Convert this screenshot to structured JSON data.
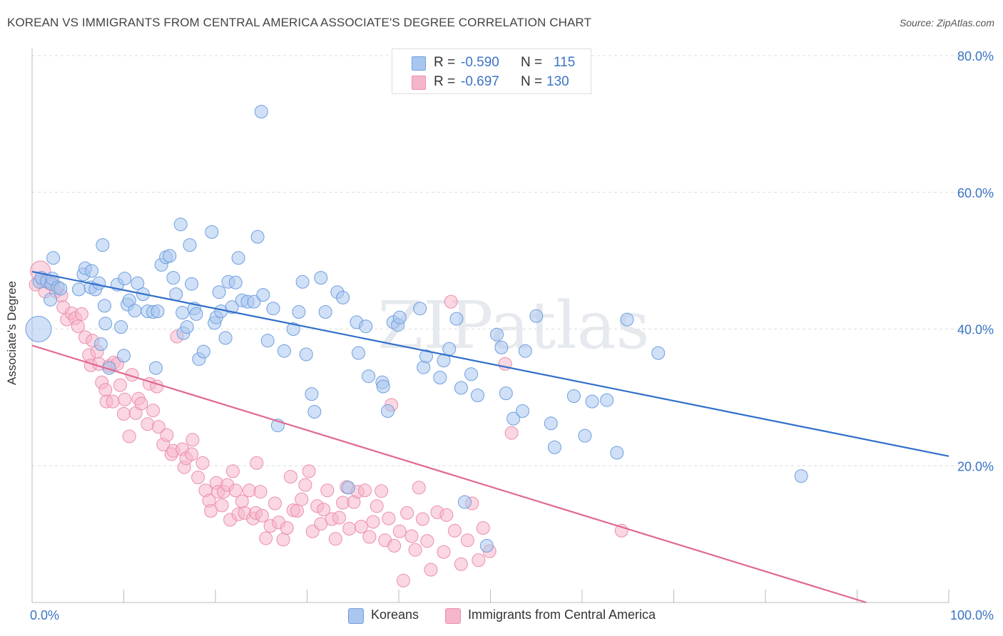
{
  "header": {
    "title": "KOREAN VS IMMIGRANTS FROM CENTRAL AMERICA ASSOCIATE'S DEGREE CORRELATION CHART",
    "source": "Source: ZipAtlas.com"
  },
  "watermark": "ZIPatlas",
  "stats": [
    {
      "r_label": "R =",
      "r_value": "-0.590",
      "n_label": "N =",
      "n_value": "115",
      "color": "#a9c6ef"
    },
    {
      "r_label": "R =",
      "r_value": "-0.697",
      "n_label": "N =",
      "n_value": "130",
      "color": "#f5b6cb"
    }
  ],
  "chart_data": {
    "type": "scatter",
    "title": "KOREAN VS IMMIGRANTS FROM CENTRAL AMERICA ASSOCIATE'S DEGREE CORRELATION CHART",
    "xlabel": "",
    "ylabel": "Associate's Degree",
    "xlim": [
      0,
      100
    ],
    "ylim": [
      0,
      80
    ],
    "x_tick_labels": [
      "0.0%",
      "100.0%"
    ],
    "y_ticks": [
      20,
      40,
      60,
      80
    ],
    "y_tick_labels": [
      "20.0%",
      "40.0%",
      "60.0%",
      "80.0%"
    ],
    "grid": true,
    "legend_position": "bottom",
    "series": [
      {
        "name": "Koreans",
        "color": "#6f9fe0",
        "fill": "#a9c6ef",
        "trendline": {
          "x": [
            0,
            100
          ],
          "y": [
            48.4,
            21.4
          ],
          "color": "#2f6fc9"
        },
        "points": [
          [
            0.7,
            40.0
          ],
          [
            0.8,
            46.9
          ],
          [
            1.0,
            47.5
          ],
          [
            1.6,
            47.0
          ],
          [
            2.0,
            44.3
          ],
          [
            2.1,
            46.6
          ],
          [
            2.2,
            47.4
          ],
          [
            2.3,
            50.4
          ],
          [
            2.8,
            46.1
          ],
          [
            3.1,
            45.9
          ],
          [
            5.1,
            45.8
          ],
          [
            5.6,
            48.0
          ],
          [
            5.8,
            48.9
          ],
          [
            6.4,
            46.1
          ],
          [
            6.5,
            48.5
          ],
          [
            6.9,
            45.8
          ],
          [
            7.3,
            46.7
          ],
          [
            7.5,
            37.8
          ],
          [
            7.7,
            52.3
          ],
          [
            7.9,
            43.4
          ],
          [
            8.0,
            40.8
          ],
          [
            8.4,
            34.3
          ],
          [
            9.3,
            46.5
          ],
          [
            9.7,
            40.3
          ],
          [
            10.0,
            36.1
          ],
          [
            10.1,
            47.4
          ],
          [
            10.4,
            43.6
          ],
          [
            10.6,
            44.2
          ],
          [
            11.2,
            42.7
          ],
          [
            11.5,
            46.7
          ],
          [
            12.1,
            45.1
          ],
          [
            12.6,
            42.6
          ],
          [
            13.2,
            42.5
          ],
          [
            13.5,
            34.3
          ],
          [
            13.7,
            42.6
          ],
          [
            14.1,
            49.4
          ],
          [
            14.6,
            50.5
          ],
          [
            15.0,
            50.7
          ],
          [
            15.4,
            47.5
          ],
          [
            15.7,
            45.1
          ],
          [
            16.2,
            55.3
          ],
          [
            16.4,
            42.4
          ],
          [
            16.5,
            39.4
          ],
          [
            16.9,
            40.3
          ],
          [
            17.2,
            52.3
          ],
          [
            17.4,
            46.6
          ],
          [
            17.7,
            43.0
          ],
          [
            17.9,
            42.2
          ],
          [
            18.2,
            35.6
          ],
          [
            18.7,
            36.7
          ],
          [
            19.6,
            54.2
          ],
          [
            19.9,
            40.9
          ],
          [
            20.1,
            41.7
          ],
          [
            20.4,
            45.4
          ],
          [
            20.6,
            42.6
          ],
          [
            21.1,
            38.7
          ],
          [
            21.4,
            46.9
          ],
          [
            21.8,
            43.2
          ],
          [
            22.2,
            46.8
          ],
          [
            22.5,
            50.4
          ],
          [
            22.9,
            44.2
          ],
          [
            23.5,
            44.0
          ],
          [
            24.2,
            44.0
          ],
          [
            24.6,
            53.5
          ],
          [
            25.0,
            71.8
          ],
          [
            25.2,
            45.0
          ],
          [
            25.7,
            38.3
          ],
          [
            26.3,
            43.0
          ],
          [
            26.8,
            25.9
          ],
          [
            27.5,
            36.8
          ],
          [
            28.5,
            40.0
          ],
          [
            29.1,
            42.5
          ],
          [
            29.5,
            46.9
          ],
          [
            29.9,
            36.3
          ],
          [
            30.5,
            30.5
          ],
          [
            30.8,
            27.9
          ],
          [
            31.5,
            47.5
          ],
          [
            32.0,
            42.5
          ],
          [
            33.3,
            45.4
          ],
          [
            33.9,
            44.6
          ],
          [
            34.5,
            16.8
          ],
          [
            35.4,
            41.0
          ],
          [
            35.6,
            36.5
          ],
          [
            36.4,
            40.4
          ],
          [
            36.7,
            33.1
          ],
          [
            38.2,
            32.2
          ],
          [
            38.3,
            31.6
          ],
          [
            38.8,
            28.0
          ],
          [
            39.4,
            41.0
          ],
          [
            39.9,
            40.6
          ],
          [
            40.1,
            41.7
          ],
          [
            42.3,
            43.0
          ],
          [
            42.7,
            34.4
          ],
          [
            43.0,
            36.0
          ],
          [
            44.5,
            32.9
          ],
          [
            44.9,
            35.4
          ],
          [
            45.5,
            37.1
          ],
          [
            46.3,
            41.5
          ],
          [
            46.8,
            31.4
          ],
          [
            47.2,
            14.7
          ],
          [
            47.9,
            33.4
          ],
          [
            48.6,
            30.3
          ],
          [
            49.6,
            8.3
          ],
          [
            50.7,
            39.2
          ],
          [
            51.2,
            37.3
          ],
          [
            51.7,
            30.6
          ],
          [
            52.5,
            26.9
          ],
          [
            53.5,
            28.0
          ],
          [
            53.8,
            36.8
          ],
          [
            55.0,
            41.9
          ],
          [
            56.6,
            26.2
          ],
          [
            57.0,
            22.7
          ],
          [
            59.1,
            30.2
          ],
          [
            60.3,
            24.4
          ],
          [
            61.1,
            29.4
          ],
          [
            62.7,
            29.6
          ],
          [
            63.8,
            21.9
          ],
          [
            64.9,
            41.4
          ],
          [
            68.3,
            36.5
          ],
          [
            83.9,
            18.5
          ]
        ]
      },
      {
        "name": "Immigrants from Central America",
        "color": "#ec8fac",
        "fill": "#f5b6cb",
        "trendline": {
          "x": [
            0,
            91
          ],
          "y": [
            37.6,
            0
          ],
          "color": "#e0688f"
        },
        "points": [
          [
            0.4,
            46.5
          ],
          [
            0.9,
            48.5
          ],
          [
            1.2,
            47.0
          ],
          [
            1.4,
            45.5
          ],
          [
            1.9,
            46.7
          ],
          [
            2.3,
            46.6
          ],
          [
            2.6,
            45.5
          ],
          [
            3.2,
            44.9
          ],
          [
            3.4,
            43.2
          ],
          [
            3.8,
            41.4
          ],
          [
            4.3,
            42.3
          ],
          [
            4.7,
            41.6
          ],
          [
            5.0,
            40.4
          ],
          [
            5.4,
            42.2
          ],
          [
            5.8,
            38.8
          ],
          [
            6.2,
            36.2
          ],
          [
            6.4,
            34.7
          ],
          [
            6.6,
            38.3
          ],
          [
            7.1,
            36.7
          ],
          [
            7.3,
            34.9
          ],
          [
            7.6,
            32.2
          ],
          [
            8.0,
            31.1
          ],
          [
            8.1,
            29.4
          ],
          [
            8.4,
            34.6
          ],
          [
            8.8,
            29.4
          ],
          [
            8.9,
            35.1
          ],
          [
            9.3,
            34.9
          ],
          [
            9.6,
            31.8
          ],
          [
            10.0,
            27.6
          ],
          [
            10.1,
            29.7
          ],
          [
            10.6,
            24.3
          ],
          [
            10.9,
            33.3
          ],
          [
            11.3,
            27.7
          ],
          [
            11.6,
            29.8
          ],
          [
            11.9,
            29.1
          ],
          [
            12.6,
            26.1
          ],
          [
            12.8,
            32.0
          ],
          [
            13.2,
            28.1
          ],
          [
            13.6,
            31.6
          ],
          [
            13.8,
            25.7
          ],
          [
            14.3,
            23.1
          ],
          [
            14.7,
            24.5
          ],
          [
            15.2,
            21.7
          ],
          [
            15.4,
            22.2
          ],
          [
            15.8,
            38.9
          ],
          [
            16.4,
            22.4
          ],
          [
            16.6,
            19.8
          ],
          [
            16.8,
            21.1
          ],
          [
            17.4,
            21.7
          ],
          [
            17.5,
            23.8
          ],
          [
            18.1,
            18.3
          ],
          [
            18.6,
            20.4
          ],
          [
            18.9,
            16.4
          ],
          [
            19.3,
            14.9
          ],
          [
            19.5,
            13.4
          ],
          [
            20.1,
            17.5
          ],
          [
            20.3,
            16.2
          ],
          [
            20.7,
            14.2
          ],
          [
            20.9,
            16.2
          ],
          [
            21.3,
            17.2
          ],
          [
            21.6,
            12.1
          ],
          [
            21.9,
            19.2
          ],
          [
            22.2,
            16.4
          ],
          [
            22.5,
            12.9
          ],
          [
            22.9,
            14.8
          ],
          [
            23.2,
            13.1
          ],
          [
            23.7,
            16.4
          ],
          [
            24.1,
            12.3
          ],
          [
            24.4,
            13.1
          ],
          [
            24.5,
            20.4
          ],
          [
            24.9,
            16.2
          ],
          [
            25.1,
            12.7
          ],
          [
            25.5,
            9.4
          ],
          [
            26.0,
            11.2
          ],
          [
            26.5,
            14.5
          ],
          [
            26.9,
            11.7
          ],
          [
            27.4,
            9.2
          ],
          [
            27.8,
            10.9
          ],
          [
            28.2,
            18.4
          ],
          [
            28.5,
            13.5
          ],
          [
            28.9,
            13.4
          ],
          [
            29.4,
            15.1
          ],
          [
            29.8,
            17.2
          ],
          [
            30.2,
            19.2
          ],
          [
            30.6,
            10.4
          ],
          [
            31.1,
            14.1
          ],
          [
            31.5,
            11.5
          ],
          [
            31.8,
            13.6
          ],
          [
            32.2,
            16.4
          ],
          [
            32.7,
            12.2
          ],
          [
            33.1,
            9.3
          ],
          [
            33.5,
            12.4
          ],
          [
            33.9,
            14.6
          ],
          [
            34.3,
            16.9
          ],
          [
            34.6,
            10.8
          ],
          [
            35.1,
            14.7
          ],
          [
            35.5,
            16.2
          ],
          [
            35.9,
            11.1
          ],
          [
            36.3,
            16.4
          ],
          [
            36.8,
            9.6
          ],
          [
            37.2,
            11.8
          ],
          [
            37.6,
            14.1
          ],
          [
            38.1,
            16.3
          ],
          [
            38.5,
            9.1
          ],
          [
            38.9,
            12.3
          ],
          [
            39.2,
            28.9
          ],
          [
            39.5,
            8.3
          ],
          [
            40.1,
            10.4
          ],
          [
            40.5,
            3.2
          ],
          [
            40.9,
            13.1
          ],
          [
            41.4,
            9.7
          ],
          [
            41.8,
            7.7
          ],
          [
            42.2,
            16.8
          ],
          [
            42.6,
            12.2
          ],
          [
            43.1,
            9.0
          ],
          [
            43.5,
            4.8
          ],
          [
            44.2,
            13.2
          ],
          [
            44.9,
            7.4
          ],
          [
            45.2,
            12.8
          ],
          [
            45.7,
            44.0
          ],
          [
            46.1,
            10.5
          ],
          [
            46.8,
            5.6
          ],
          [
            47.5,
            9.1
          ],
          [
            48.0,
            14.5
          ],
          [
            48.7,
            6.2
          ],
          [
            49.2,
            10.9
          ],
          [
            49.9,
            7.5
          ],
          [
            51.6,
            34.9
          ],
          [
            52.3,
            24.8
          ],
          [
            64.3,
            10.5
          ]
        ]
      }
    ]
  },
  "bottom_legend": [
    {
      "label": "Koreans",
      "color": "#a9c6ef"
    },
    {
      "label": "Immigrants from Central America",
      "color": "#f5b6cb"
    }
  ]
}
